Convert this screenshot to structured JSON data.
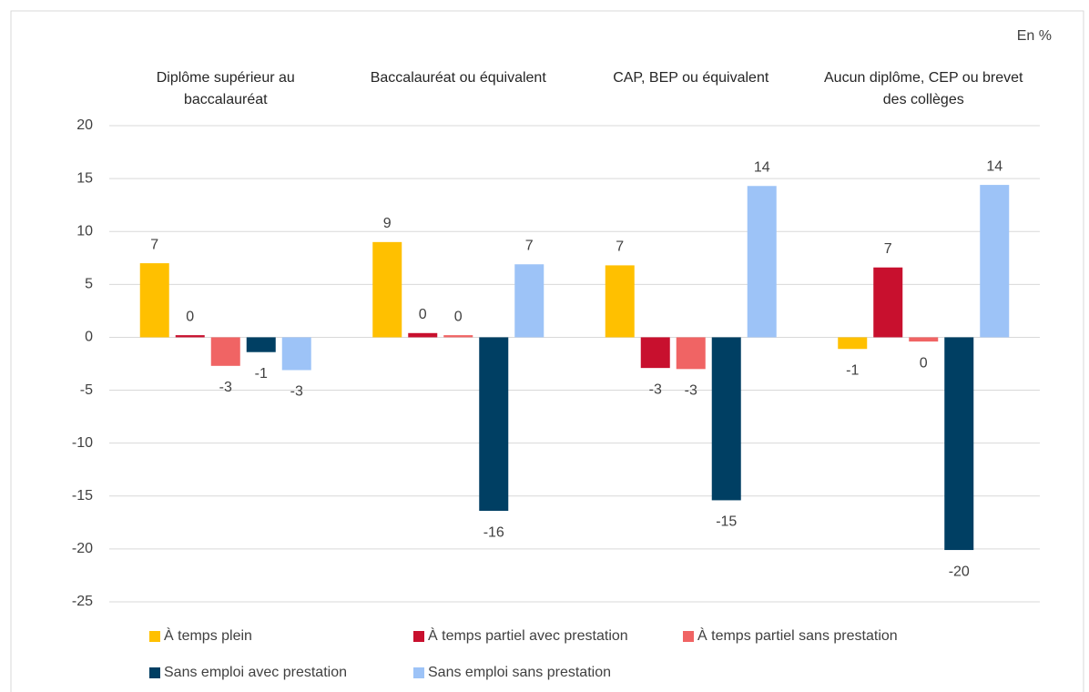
{
  "chart_data": {
    "type": "bar",
    "unit_label": "En %",
    "categories": [
      "Diplôme supérieur au baccalauréat",
      "Baccalauréat ou équivalent",
      "CAP, BEP ou équivalent",
      "Aucun diplôme, CEP ou brevet des collèges"
    ],
    "series": [
      {
        "name": "À temps plein",
        "color": "#ffc000",
        "values": [
          7.0,
          9.0,
          6.8,
          -1.1
        ],
        "value_labels": [
          "7",
          "9",
          "7",
          "-1"
        ]
      },
      {
        "name": "À temps partiel avec prestation",
        "color": "#c8102e",
        "values": [
          0.2,
          0.4,
          -2.9,
          6.6
        ],
        "value_labels": [
          "0",
          "0",
          "-3",
          "7"
        ]
      },
      {
        "name": "À temps partiel sans prestation",
        "color": "#f06464",
        "values": [
          -2.7,
          0.2,
          -3.0,
          -0.4
        ],
        "value_labels": [
          "-3",
          "0",
          "-3",
          "0"
        ]
      },
      {
        "name": "Sans emploi avec prestation",
        "color": "#003f63",
        "values": [
          -1.4,
          -16.4,
          -15.4,
          -20.1
        ],
        "value_labels": [
          "-1",
          "-16",
          "-15",
          "-20"
        ]
      },
      {
        "name": "Sans emploi sans prestation",
        "color": "#9dc3f7",
        "values": [
          -3.1,
          6.9,
          14.3,
          14.4
        ],
        "value_labels": [
          "-3",
          "7",
          "14",
          "14"
        ]
      }
    ],
    "ylim": [
      -25,
      20
    ],
    "yticks": [
      20,
      15,
      10,
      5,
      0,
      -5,
      -10,
      -15,
      -20,
      -25
    ],
    "grid": true
  }
}
